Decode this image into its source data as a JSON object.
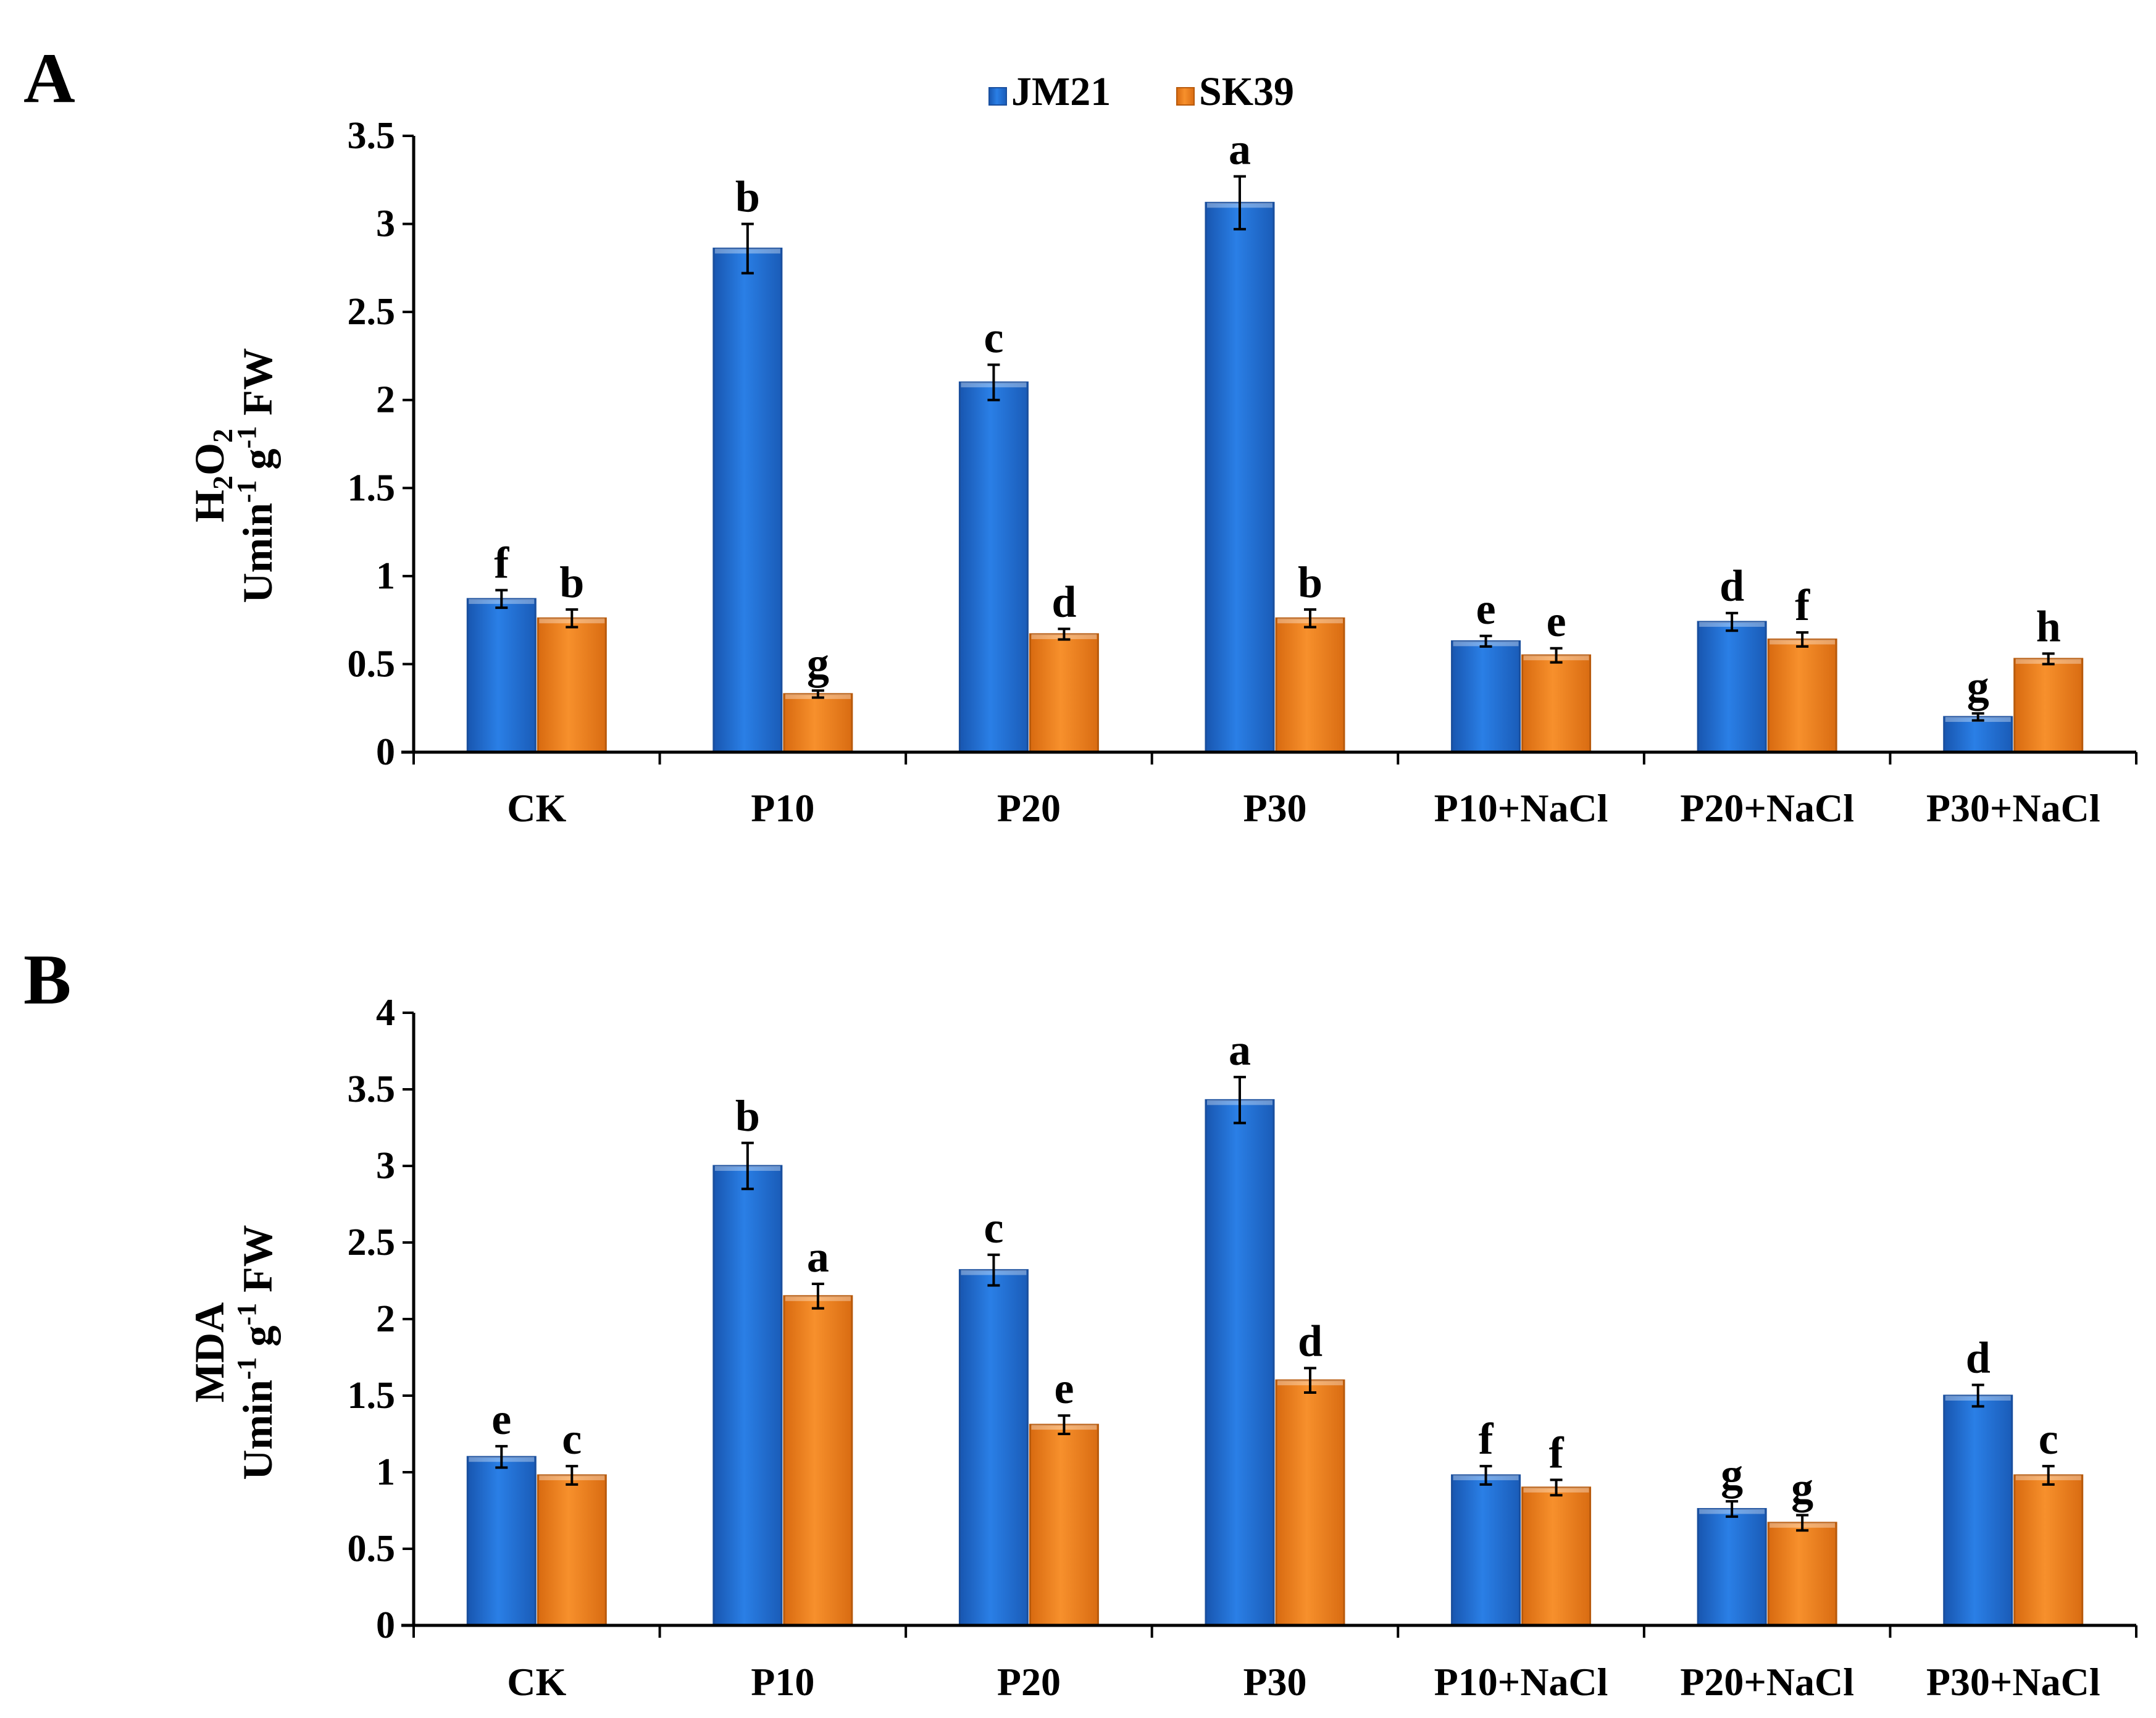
{
  "legend": [
    {
      "name": "JM21",
      "color": "#1f6fd1"
    },
    {
      "name": "SK39",
      "color": "#f07f1e"
    }
  ],
  "chart_data": [
    {
      "panel": "A",
      "type": "bar",
      "title": "",
      "xlabel": "",
      "ylabel_line1": "H2O2",
      "ylabel_line1_sub": "2",
      "ylabel_line2": "Umin-1 g-1 FW",
      "ylim": [
        0,
        3.5
      ],
      "yticks": [
        "0",
        "0.5",
        "1",
        "1.5",
        "2",
        "2.5",
        "3",
        "3.5"
      ],
      "categories": [
        "CK",
        "P10",
        "P20",
        "P30",
        "P10+NaCl",
        "P20+NaCl",
        "P30+NaCl"
      ],
      "series": [
        {
          "name": "JM21",
          "values": [
            0.87,
            2.86,
            2.1,
            3.12,
            0.63,
            0.74,
            0.2
          ],
          "errors": [
            0.05,
            0.14,
            0.1,
            0.15,
            0.03,
            0.05,
            0.02
          ],
          "letters": [
            "f",
            "b",
            "c",
            "a",
            "e",
            "d",
            "g"
          ]
        },
        {
          "name": "SK39",
          "values": [
            0.76,
            0.33,
            0.67,
            0.76,
            0.55,
            0.64,
            0.53
          ],
          "errors": [
            0.05,
            0.02,
            0.03,
            0.05,
            0.04,
            0.04,
            0.03
          ],
          "letters": [
            "b",
            "g",
            "d",
            "b",
            "e",
            "f",
            "h"
          ]
        }
      ]
    },
    {
      "panel": "B",
      "type": "bar",
      "title": "",
      "xlabel": "",
      "ylabel_line1": "MDA",
      "ylabel_line2": "Umin-1 g-1 FW",
      "ylim": [
        0,
        4
      ],
      "yticks": [
        "0",
        "0.5",
        "1",
        "1.5",
        "2",
        "2.5",
        "3",
        "3.5",
        "4"
      ],
      "categories": [
        "CK",
        "P10",
        "P20",
        "P30",
        "P10+NaCl",
        "P20+NaCl",
        "P30+NaCl"
      ],
      "series": [
        {
          "name": "JM21",
          "values": [
            1.1,
            3.0,
            2.32,
            3.43,
            0.98,
            0.76,
            1.5
          ],
          "errors": [
            0.07,
            0.15,
            0.1,
            0.15,
            0.06,
            0.05,
            0.07
          ],
          "letters": [
            "e",
            "b",
            "c",
            "a",
            "f",
            "g",
            "d"
          ]
        },
        {
          "name": "SK39",
          "values": [
            0.98,
            2.15,
            1.31,
            1.6,
            0.9,
            0.67,
            0.98
          ],
          "errors": [
            0.06,
            0.08,
            0.06,
            0.08,
            0.05,
            0.05,
            0.06
          ],
          "letters": [
            "c",
            "a",
            "e",
            "d",
            "f",
            "g",
            "c"
          ]
        }
      ]
    }
  ]
}
